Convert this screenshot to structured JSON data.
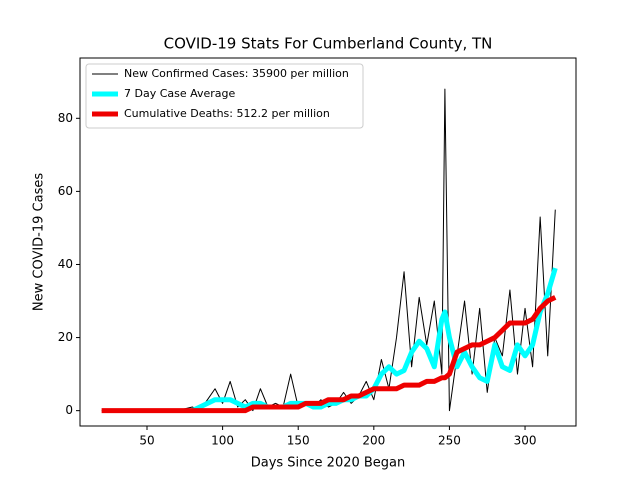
{
  "chart_data": {
    "type": "line",
    "title": "COVID-19 Stats For Cumberland County, TN",
    "x_label": "Days Since 2020 Began",
    "y_label": "New COVID-19 Cases",
    "x": [
      20,
      30,
      40,
      50,
      60,
      70,
      80,
      85,
      90,
      95,
      100,
      105,
      110,
      115,
      120,
      125,
      130,
      135,
      140,
      145,
      150,
      155,
      160,
      165,
      170,
      175,
      180,
      185,
      190,
      195,
      200,
      205,
      210,
      215,
      220,
      225,
      230,
      235,
      240,
      245,
      247,
      250,
      255,
      260,
      265,
      270,
      275,
      280,
      285,
      290,
      295,
      300,
      305,
      310,
      315,
      320
    ],
    "series": [
      {
        "name": "New Confirmed Cases: 35900 per million",
        "color": "#000000",
        "width": 1,
        "values": [
          0,
          0,
          0,
          0,
          0,
          0,
          1,
          0,
          3,
          6,
          2,
          8,
          1,
          3,
          0,
          6,
          1,
          2,
          1,
          10,
          1,
          2,
          1,
          3,
          1,
          2,
          5,
          2,
          4,
          8,
          3,
          14,
          6,
          20,
          38,
          12,
          31,
          18,
          30,
          10,
          88,
          0,
          15,
          30,
          10,
          28,
          5,
          20,
          15,
          33,
          10,
          28,
          12,
          53,
          15,
          55
        ]
      },
      {
        "name": "7 Day Case Average",
        "color": "#00ffff",
        "width": 5,
        "values": [
          null,
          null,
          null,
          null,
          null,
          null,
          0,
          1,
          2,
          3,
          3,
          3,
          2,
          1,
          2,
          2,
          1,
          1,
          1,
          2,
          2,
          2,
          1,
          1,
          2,
          2,
          3,
          3,
          4,
          4,
          6,
          10,
          12,
          10,
          11,
          16,
          19,
          17,
          12,
          25,
          27,
          20,
          12,
          16,
          12,
          9,
          8,
          18,
          12,
          11,
          18,
          15,
          18,
          27,
          32,
          39
        ]
      },
      {
        "name": "Cumulative Deaths: 512.2 per million",
        "color": "#ee0000",
        "width": 5,
        "values": [
          0,
          0,
          0,
          0,
          0,
          0,
          0,
          0,
          0,
          0,
          0,
          0,
          0,
          0,
          1,
          1,
          1,
          1,
          1,
          1,
          1,
          2,
          2,
          2,
          3,
          3,
          3,
          4,
          4,
          5,
          6,
          6,
          6,
          6,
          7,
          7,
          7,
          8,
          8,
          9,
          9,
          10,
          16,
          17,
          18,
          18,
          19,
          20,
          22,
          24,
          24,
          24,
          25,
          28,
          30,
          31
        ]
      }
    ],
    "xlim": [
      5.7,
      333.7
    ],
    "ylim": [
      -4.2,
      96.5
    ],
    "xticks": [
      50,
      100,
      150,
      200,
      250,
      300
    ],
    "yticks": [
      0,
      20,
      40,
      60,
      80
    ],
    "legend": "upper left"
  }
}
